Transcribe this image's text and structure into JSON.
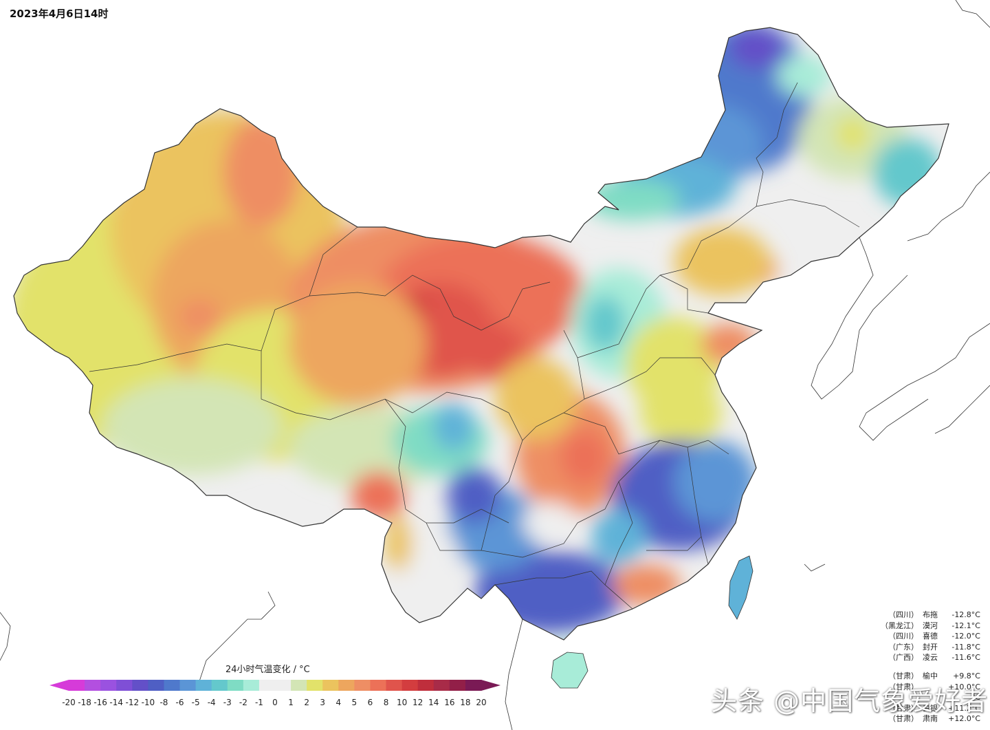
{
  "map": {
    "title": "2023年4月6日14时",
    "legend_title": "24小时气温变化 / °C",
    "legend_ticks": [
      "-20",
      "-18",
      "-16",
      "-14",
      "-12",
      "-10",
      "-8",
      "-6",
      "-5",
      "-4",
      "-3",
      "-2",
      "-1",
      "0",
      "1",
      "2",
      "3",
      "4",
      "5",
      "6",
      "8",
      "10",
      "12",
      "14",
      "16",
      "18",
      "20"
    ],
    "legend_colors": [
      "#d63bd9",
      "#b34fe0",
      "#9a52e0",
      "#7f4fd6",
      "#6350c8",
      "#4f5fc4",
      "#4f79cc",
      "#5b95d6",
      "#5fb2d8",
      "#64c8cc",
      "#7fdcc4",
      "#a8ecd8",
      "#efefef",
      "#efefef",
      "#d3e5b5",
      "#e2e26a",
      "#ebc35e",
      "#eda65e",
      "#ee8e64",
      "#ec7158",
      "#e0544c",
      "#d33d3f",
      "#bf2e3c",
      "#a82b48",
      "#921f48",
      "#7a1a55"
    ]
  },
  "cooling_stations": [
    {
      "province": "（四川）",
      "city": "布拖",
      "value": "-12.8°C"
    },
    {
      "province": "（黑龙江）",
      "city": "漠河",
      "value": "-12.1°C"
    },
    {
      "province": "（四川）",
      "city": "喜德",
      "value": "-12.0°C"
    },
    {
      "province": "（广东）",
      "city": "封开",
      "value": "-11.8°C"
    },
    {
      "province": "（广西）",
      "city": "凌云",
      "value": "-11.6°C"
    }
  ],
  "warming_stations": [
    {
      "province": "（甘肃）",
      "city": "榆中",
      "value": "+9.8°C"
    },
    {
      "province": "（甘肃）",
      "city": "",
      "value": "+10.0°C"
    },
    {
      "province": "",
      "city": "",
      "value": "°C"
    },
    {
      "province": "（甘肃）",
      "city": "白银",
      "value": "+11.2°C"
    },
    {
      "province": "（甘肃）",
      "city": "肃南",
      "value": "+12.0°C"
    }
  ],
  "watermark": "头条 @中国气象爱好者"
}
